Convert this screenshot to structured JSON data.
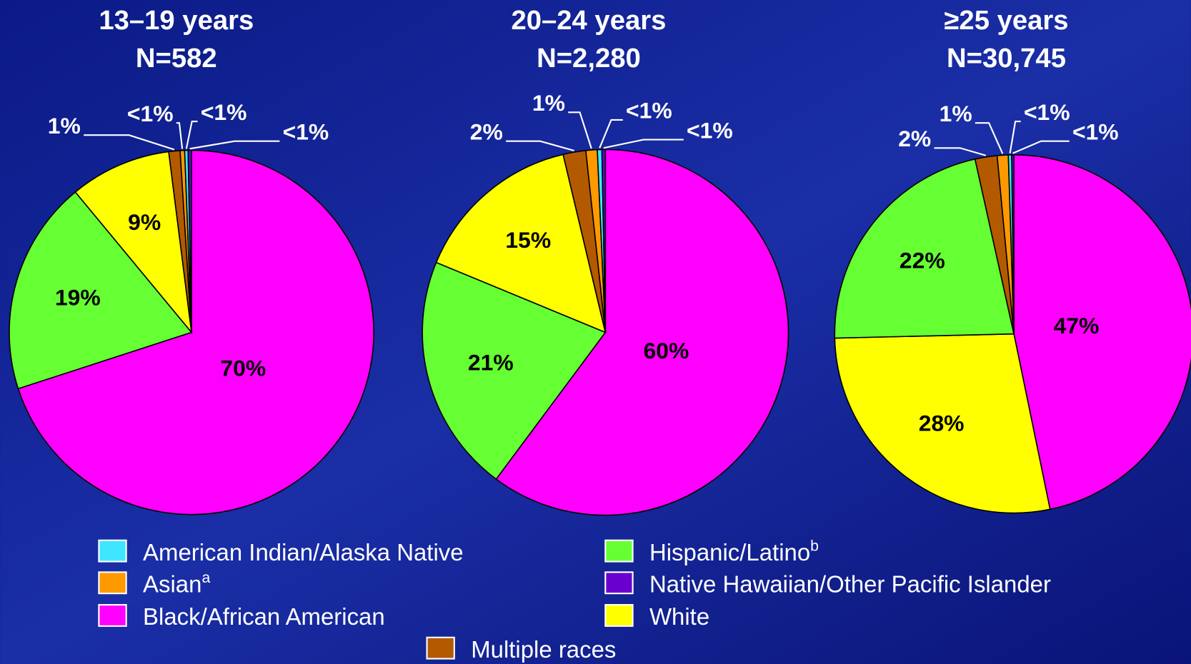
{
  "legend": {
    "items": [
      {
        "name": "American Indian/Alaska Native",
        "color": "#3fe6ff"
      },
      {
        "name": "Asian",
        "sup": "a",
        "color": "#ff9900"
      },
      {
        "name": "Black/African American",
        "color": "#ff00ff"
      },
      {
        "name": "Hispanic/Latino",
        "sup": "b",
        "color": "#66ff33"
      },
      {
        "name": "Native Hawaiian/Other Pacific Islander",
        "color": "#6a00d0"
      },
      {
        "name": "White",
        "color": "#ffff00"
      },
      {
        "name": "Multiple races",
        "color": "#b35a00"
      }
    ]
  },
  "chart_data": [
    {
      "type": "pie",
      "title": "13–19 years",
      "subtitle": "N=582",
      "values": [
        0.3,
        0.4,
        70,
        19,
        0.3,
        9,
        1
      ],
      "value_labels": [
        "<1%",
        "<1%",
        "70%",
        "19%",
        "<1%",
        "9%",
        "1%"
      ]
    },
    {
      "type": "pie",
      "title": "20–24 years",
      "subtitle": "N=2,280",
      "values": [
        0.4,
        1,
        60,
        21,
        0.3,
        15,
        2
      ],
      "value_labels": [
        "<1%",
        "1%",
        "60%",
        "21%",
        "<1%",
        "15%",
        "2%"
      ]
    },
    {
      "type": "pie",
      "title": "≥25 years",
      "subtitle": "N=30,745",
      "values": [
        0.3,
        1,
        47,
        22,
        0.2,
        28,
        2
      ],
      "value_labels": [
        "<1%",
        "1%",
        "47%",
        "22%",
        "<1%",
        "28%",
        "2%"
      ]
    }
  ]
}
